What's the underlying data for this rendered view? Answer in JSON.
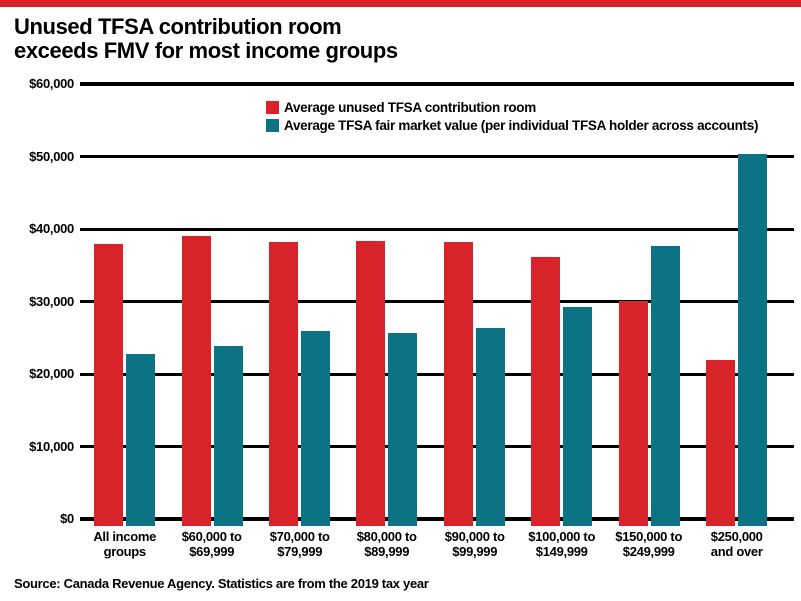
{
  "title": {
    "line1": "Unused TFSA contribution room",
    "line2": "exceeds FMV for most income groups"
  },
  "source": "Source: Canada Revenue Agency. Statistics are from the 2019 tax year",
  "colors": {
    "accent_red": "#d8232a",
    "accent_teal": "#0c7384",
    "grid": "#000000",
    "background": "#ffffff"
  },
  "chart_data": {
    "type": "bar",
    "title": "Unused TFSA contribution room exceeds FMV for most income groups",
    "categories": [
      "All income groups",
      "$60,000 to $69,999",
      "$70,000 to $79,999",
      "$80,000 to $89,999",
      "$90,000 to $99,999",
      "$100,000 to $149,999",
      "$150,000 to $249,999",
      "$250,000 and over"
    ],
    "tick_lines": [
      [
        "All income",
        "groups"
      ],
      [
        "$60,000 to",
        "$69,999"
      ],
      [
        "$70,000 to",
        "$79,999"
      ],
      [
        "$80,000 to",
        "$89,999"
      ],
      [
        "$90,000 to",
        "$99,999"
      ],
      [
        "$100,000 to",
        "$149,999"
      ],
      [
        "$150,000 to",
        "$249,999"
      ],
      [
        "$250,000",
        "and over"
      ]
    ],
    "series": [
      {
        "name": "Average unused TFSA contribution room",
        "color": "#d8232a",
        "values": [
          38000,
          39100,
          38200,
          38300,
          38200,
          36100,
          30100,
          22000
        ]
      },
      {
        "name": "Average TFSA fair market value (per individual TFSA holder across accounts)",
        "color": "#0c7384",
        "values": [
          22800,
          23800,
          25900,
          25700,
          26300,
          29200,
          37700,
          50400
        ]
      }
    ],
    "xlabel": "",
    "ylabel": "",
    "ylim": [
      0,
      60000
    ],
    "ytick_step": 10000,
    "ytick_labels": [
      "$0",
      "$10,000",
      "$20,000",
      "$30,000",
      "$40,000",
      "$50,000",
      "$60,000"
    ],
    "grid": true,
    "legend_position": "top-center-inside"
  }
}
